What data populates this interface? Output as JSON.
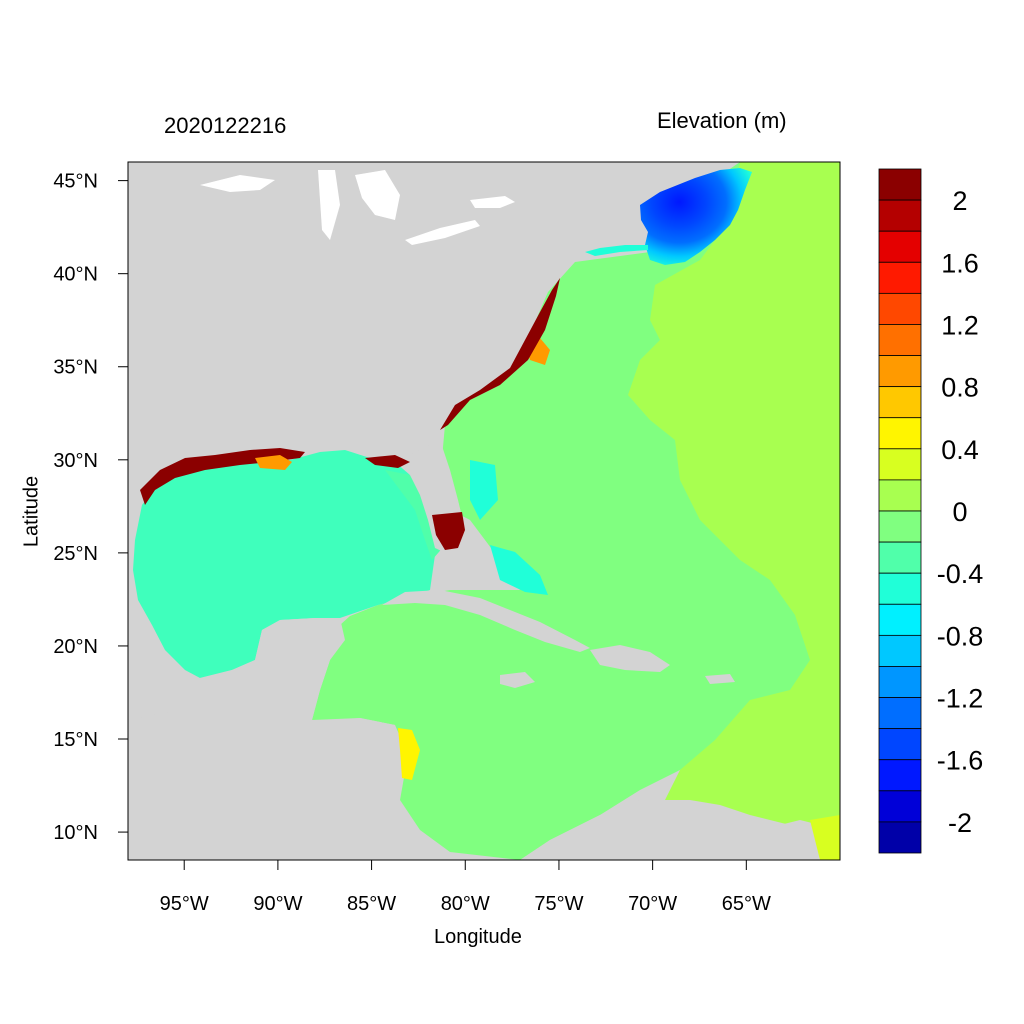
{
  "header": {
    "timestamp": "2020122216",
    "variable_title": "Elevation (m)"
  },
  "map": {
    "x_axis_title": "Longitude",
    "y_axis_title": "Latitude",
    "lon_range": [
      -98,
      -60
    ],
    "lat_range": [
      8.5,
      46
    ],
    "lon_ticks": [
      {
        "value": -95,
        "label": "95°W"
      },
      {
        "value": -90,
        "label": "90°W"
      },
      {
        "value": -85,
        "label": "85°W"
      },
      {
        "value": -80,
        "label": "80°W"
      },
      {
        "value": -75,
        "label": "75°W"
      },
      {
        "value": -70,
        "label": "70°W"
      },
      {
        "value": -65,
        "label": "65°W"
      }
    ],
    "lat_ticks": [
      {
        "value": 45,
        "label": "45°N"
      },
      {
        "value": 40,
        "label": "40°N"
      },
      {
        "value": 35,
        "label": "35°N"
      },
      {
        "value": 30,
        "label": "30°N"
      },
      {
        "value": 25,
        "label": "25°N"
      },
      {
        "value": 20,
        "label": "20°N"
      },
      {
        "value": 15,
        "label": "15°N"
      },
      {
        "value": 10,
        "label": "10°N"
      }
    ],
    "colors": {
      "land": "#d3d3d3",
      "gulf_of_mexico": "#3fffbc",
      "atlantic_shelf": "#80ff80",
      "open_atlantic": "#a8ff50",
      "gulf_of_maine": "#0a28ff",
      "inundation": "#8b0000"
    }
  },
  "colorbar": {
    "colors": [
      "#8b0000",
      "#b40000",
      "#e40000",
      "#ff1a00",
      "#ff4800",
      "#ff7000",
      "#ff9a00",
      "#ffc800",
      "#fff500",
      "#d8ff20",
      "#a8ff50",
      "#80ff80",
      "#50ffaa",
      "#20ffd8",
      "#00f0ff",
      "#00c8ff",
      "#0096ff",
      "#006eff",
      "#0046ff",
      "#0018ff",
      "#0000d8",
      "#0000a8"
    ],
    "labels": [
      "2",
      "1.6",
      "1.2",
      "0.8",
      "0.4",
      "0",
      "-0.4",
      "-0.8",
      "-1.2",
      "-1.6",
      "-2"
    ]
  }
}
